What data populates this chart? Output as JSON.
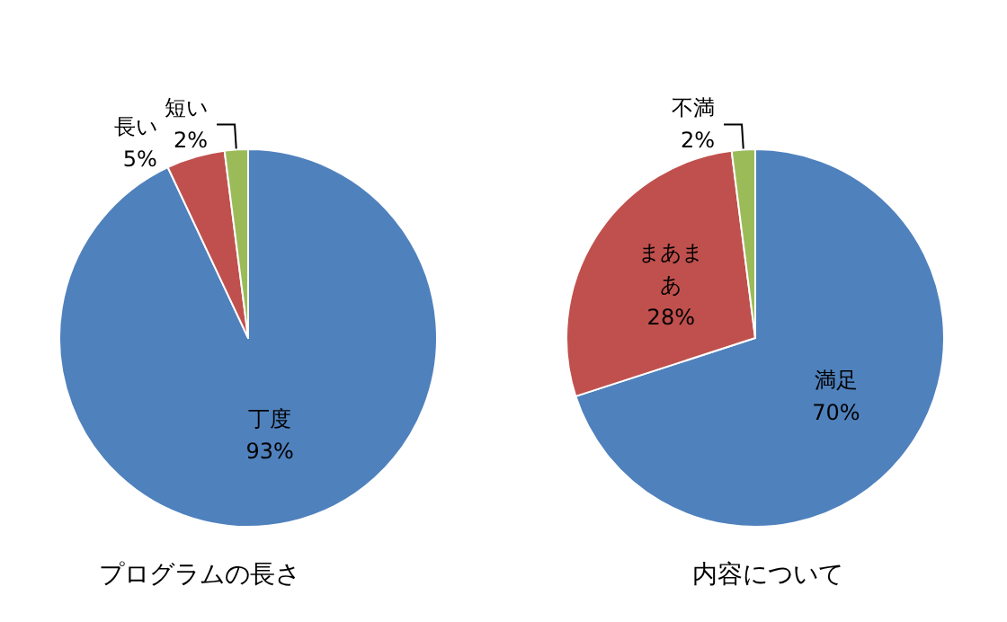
{
  "chart_data": [
    {
      "type": "pie",
      "title": "プログラムの長さ",
      "categories": [
        "丁度",
        "長い",
        "短い"
      ],
      "values": [
        93,
        5,
        2
      ],
      "value_labels": [
        "93%",
        "5%",
        "2%"
      ],
      "colors": [
        "#4f81bd",
        "#c0504d",
        "#9bbb59"
      ],
      "legend": false
    },
    {
      "type": "pie",
      "title": "内容について",
      "categories": [
        "満足",
        "まあまあ",
        "不満"
      ],
      "values": [
        70,
        28,
        2
      ],
      "value_labels": [
        "70%",
        "28%",
        "2%"
      ],
      "colors": [
        "#4f81bd",
        "#c0504d",
        "#9bbb59"
      ],
      "legend": false
    }
  ]
}
